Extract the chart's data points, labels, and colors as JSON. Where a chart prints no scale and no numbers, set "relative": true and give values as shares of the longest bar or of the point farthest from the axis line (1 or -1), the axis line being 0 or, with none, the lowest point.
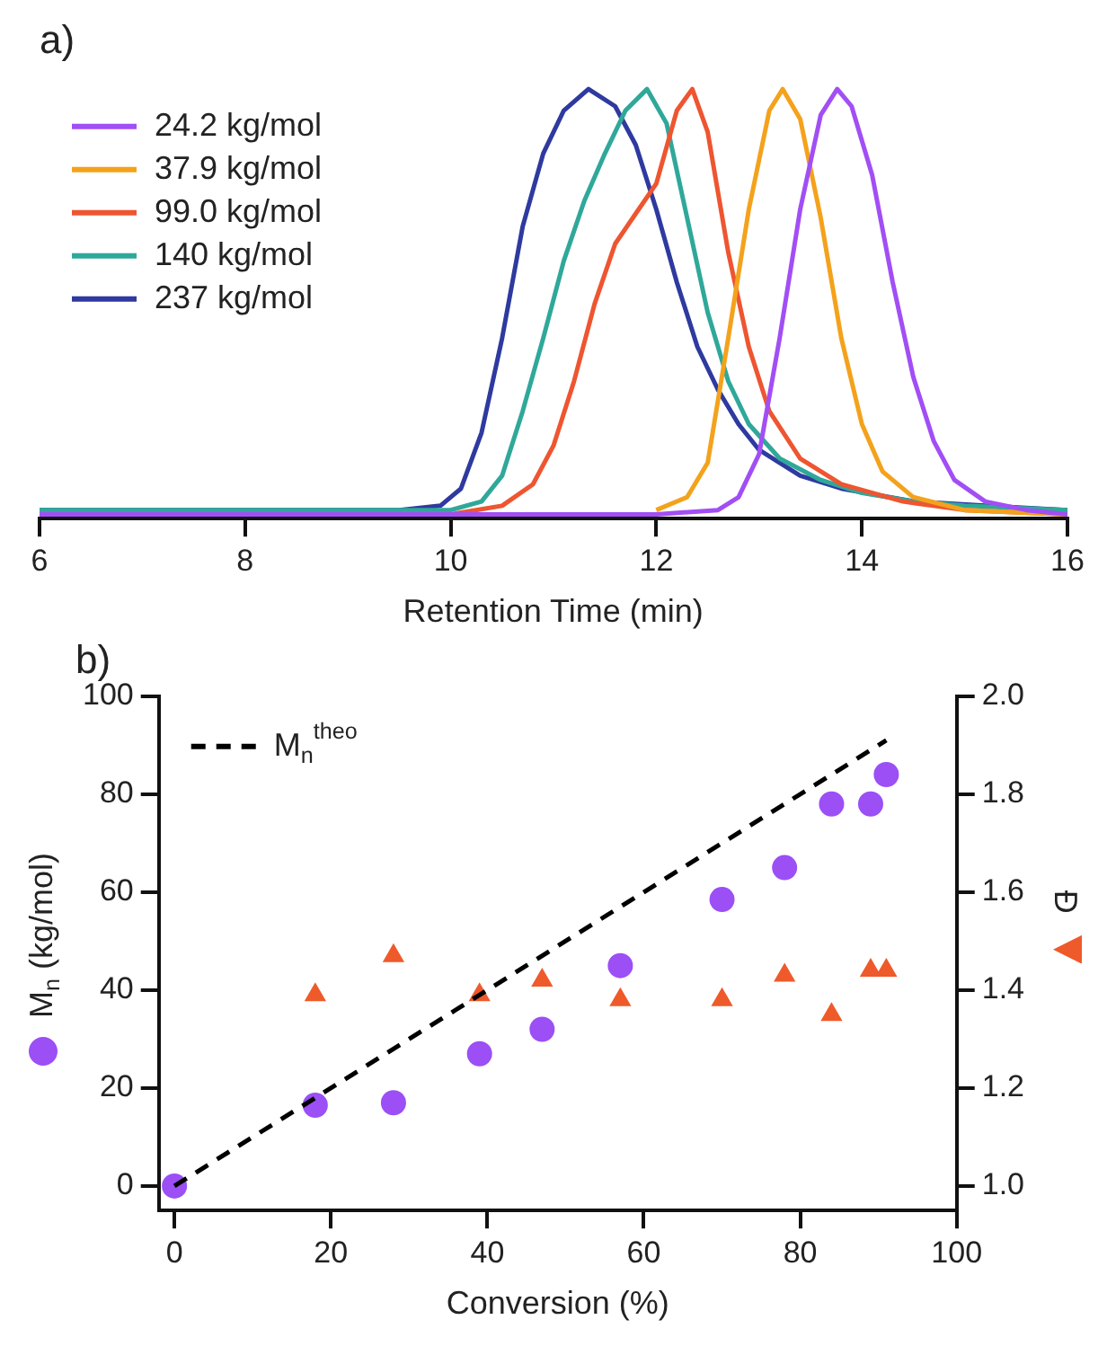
{
  "chart_data": [
    {
      "type": "line",
      "title": "a)",
      "xlabel": "Retention Time (min)",
      "relative": true,
      "xlim": [
        6,
        16
      ],
      "xticks": [
        6,
        8,
        10,
        12,
        14,
        16
      ],
      "grid": false,
      "legend": "top left",
      "marker": "none",
      "series": [
        {
          "name": "24.2 kg/mol",
          "color": "#a24ef5",
          "x": [
            6,
            10,
            12,
            12.6,
            12.8,
            13.0,
            13.2,
            13.4,
            13.6,
            13.76,
            13.9,
            14.1,
            14.3,
            14.5,
            14.7,
            14.9,
            15.2,
            15.6,
            16
          ],
          "values": [
            0.01,
            0.01,
            0.01,
            0.02,
            0.05,
            0.15,
            0.42,
            0.72,
            0.94,
            1.0,
            0.96,
            0.8,
            0.55,
            0.33,
            0.18,
            0.09,
            0.04,
            0.02,
            0.01
          ]
        },
        {
          "name": "37.9 kg/mol",
          "color": "#f4a21c",
          "x": [
            12,
            12.3,
            12.5,
            12.7,
            12.9,
            13.1,
            13.23,
            13.4,
            13.6,
            13.8,
            14.0,
            14.2,
            14.5,
            15,
            16
          ],
          "values": [
            0.02,
            0.05,
            0.13,
            0.42,
            0.72,
            0.95,
            1.0,
            0.93,
            0.7,
            0.42,
            0.22,
            0.11,
            0.05,
            0.02,
            0.01
          ]
        },
        {
          "name": "99.0 kg/mol",
          "color": "#ee5530",
          "x": [
            10,
            10.5,
            10.8,
            11.0,
            11.2,
            11.4,
            11.6,
            11.8,
            12.0,
            12.2,
            12.35,
            12.5,
            12.7,
            12.9,
            13.1,
            13.4,
            13.8,
            14.4,
            15,
            16
          ],
          "values": [
            0.01,
            0.03,
            0.08,
            0.17,
            0.32,
            0.5,
            0.64,
            0.71,
            0.78,
            0.95,
            1.0,
            0.9,
            0.62,
            0.4,
            0.25,
            0.14,
            0.08,
            0.04,
            0.02,
            0.01
          ]
        },
        {
          "name": "140 kg/mol",
          "color": "#2fa89a",
          "x": [
            6,
            10,
            10.3,
            10.5,
            10.7,
            10.9,
            11.1,
            11.3,
            11.5,
            11.7,
            11.91,
            12.1,
            12.3,
            12.5,
            12.7,
            12.9,
            13.2,
            13.6,
            14,
            14.5,
            15,
            16
          ],
          "values": [
            0.02,
            0.02,
            0.04,
            0.1,
            0.25,
            0.42,
            0.6,
            0.74,
            0.85,
            0.95,
            1.0,
            0.92,
            0.7,
            0.48,
            0.32,
            0.22,
            0.14,
            0.09,
            0.06,
            0.04,
            0.03,
            0.02
          ]
        },
        {
          "name": "237 kg/mol",
          "color": "#2e3a9f",
          "x": [
            6,
            9.5,
            9.9,
            10.1,
            10.3,
            10.5,
            10.7,
            10.9,
            11.1,
            11.34,
            11.6,
            11.8,
            12.0,
            12.2,
            12.4,
            12.6,
            12.8,
            13.0,
            13.4,
            13.8,
            14.5,
            15.2,
            16
          ],
          "values": [
            0.02,
            0.02,
            0.03,
            0.07,
            0.2,
            0.42,
            0.68,
            0.85,
            0.95,
            1.0,
            0.96,
            0.87,
            0.72,
            0.55,
            0.4,
            0.3,
            0.22,
            0.16,
            0.1,
            0.07,
            0.04,
            0.03,
            0.02
          ]
        }
      ]
    },
    {
      "type": "scatter",
      "title": "b)",
      "xlabel": "Conversion (%)",
      "ylabel": "M$_{n}$ (kg/mol)",
      "y2label": "Đ",
      "xlim": [
        -2,
        100
      ],
      "xticks": [
        0,
        20,
        40,
        60,
        80,
        100
      ],
      "ylim": [
        -5,
        100
      ],
      "yticks": [
        0,
        20,
        40,
        60,
        80,
        100
      ],
      "y2lim": [
        0.95,
        2.0
      ],
      "y2ticks": [
        {
          "value": 1,
          "label": "1.0"
        },
        1.2,
        1.4,
        1.6,
        1.8,
        {
          "value": 2,
          "label": "2.0"
        }
      ],
      "grid": false,
      "legend": "top left",
      "series": [
        {
          "name": "M$_{n}$$^{theo}$",
          "type": "line",
          "line_style": "dashed",
          "marker": "none",
          "color": "#000000",
          "x": [
            0,
            91
          ],
          "values": [
            0,
            91
          ]
        },
        {
          "type": "scatter",
          "marker": "circle",
          "color": "#9b4ff5",
          "x": [
            0,
            18,
            28,
            39,
            47,
            57,
            70,
            78,
            84,
            89,
            91
          ],
          "values": [
            0,
            16.5,
            17,
            27,
            32,
            45,
            58.5,
            65,
            78,
            78,
            84
          ]
        },
        {
          "type": "scatter",
          "marker": "triangle",
          "axis": "y2",
          "color": "#ee5a2a",
          "x": [
            18,
            28,
            39,
            47,
            57,
            70,
            78,
            84,
            89,
            91
          ],
          "values": [
            1.39,
            1.47,
            1.39,
            1.42,
            1.38,
            1.38,
            1.43,
            1.35,
            1.44,
            1.44
          ]
        }
      ]
    }
  ]
}
